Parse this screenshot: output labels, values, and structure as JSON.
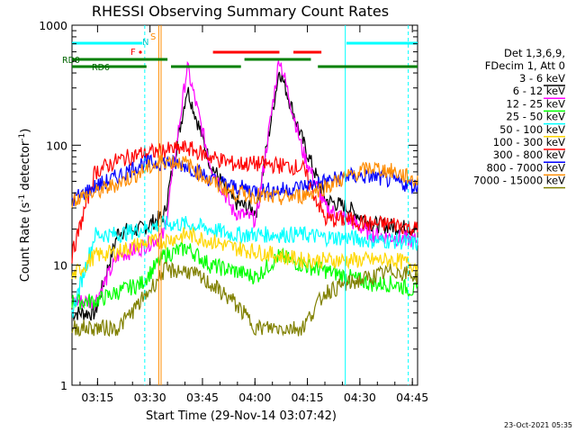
{
  "chart_data": {
    "type": "line",
    "title": "RHESSI Observing Summary Count Rates",
    "xlabel": "Start Time (29-Nov-14 03:07:42)",
    "ylabel_main": "Count Rate (s",
    "ylabel_sup1": "-1",
    "ylabel_mid": " detector",
    "ylabel_sup2": "-1",
    "ylabel_end": ")",
    "y_scale": "log",
    "ylim": [
      1,
      1000
    ],
    "xlim": [
      "03:07:42",
      "04:46:30"
    ],
    "x_ticks": [
      "03:15",
      "03:30",
      "03:45",
      "04:00",
      "04:15",
      "04:30",
      "04:45"
    ],
    "y_ticks": [
      "1",
      "10",
      "100",
      "1000"
    ],
    "grid": false,
    "legend_position": "right",
    "legend_header": [
      "Det 1,3,6,9,",
      "FDecim 1, Att 0"
    ],
    "series": [
      {
        "name": "3 - 6 keV",
        "color": "#000000",
        "base": [
          4,
          4,
          19,
          20,
          26,
          300,
          70,
          34,
          28,
          430,
          110,
          35,
          30,
          22,
          21,
          20
        ]
      },
      {
        "name": "6 - 12 keV",
        "color": "#ff00ff",
        "base": [
          5,
          5,
          12,
          14,
          18,
          450,
          70,
          28,
          24,
          540,
          90,
          30,
          24,
          18,
          17,
          16
        ]
      },
      {
        "name": "12 - 25 keV",
        "color": "#00ff00",
        "base": [
          5,
          5,
          6,
          7,
          12,
          14,
          10,
          9,
          8,
          12,
          10,
          9,
          8,
          7,
          7,
          6
        ]
      },
      {
        "name": "25 - 50 keV",
        "color": "#00ffff",
        "base": [
          4,
          18,
          18,
          20,
          22,
          22,
          20,
          18,
          18,
          18,
          18,
          17,
          17,
          16,
          16,
          15
        ]
      },
      {
        "name": "50 - 100 keV",
        "color": "#ffd700",
        "base": [
          8,
          12,
          13,
          15,
          16,
          18,
          16,
          14,
          13,
          12,
          11,
          11,
          11,
          11,
          11,
          10
        ]
      },
      {
        "name": "100 - 300 keV",
        "color": "#ff0000",
        "base": [
          12,
          60,
          75,
          85,
          90,
          95,
          80,
          70,
          70,
          68,
          65,
          24,
          24,
          22,
          22,
          20
        ]
      },
      {
        "name": "300 - 800 keV",
        "color": "#0000ff",
        "base": [
          35,
          45,
          55,
          70,
          72,
          68,
          52,
          45,
          42,
          42,
          45,
          50,
          55,
          55,
          50,
          45
        ]
      },
      {
        "name": "800 - 7000 keV",
        "color": "#ff8c00",
        "base": [
          35,
          40,
          48,
          60,
          75,
          70,
          50,
          40,
          38,
          36,
          38,
          45,
          55,
          65,
          60,
          50
        ]
      },
      {
        "name": "7000 - 15000 keV",
        "color": "#808000",
        "base": [
          3,
          3,
          3,
          5,
          9,
          9,
          7,
          5,
          3,
          3,
          3,
          6,
          7,
          8,
          9,
          8
        ]
      }
    ],
    "annotations": {
      "rd_labels": [
        "RD0",
        "RD6"
      ],
      "markers": [
        "N",
        "F",
        "S"
      ]
    },
    "footer_date": "23-Oct-2021 05:35"
  }
}
